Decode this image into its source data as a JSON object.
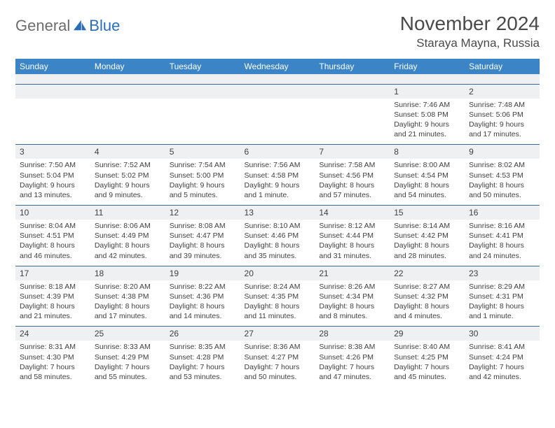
{
  "brand": {
    "part1": "General",
    "part2": "Blue"
  },
  "title": "November 2024",
  "location": "Staraya Mayna, Russia",
  "colors": {
    "header_bg": "#3b85c6",
    "header_text": "#ffffff",
    "row_band": "#eef0f2",
    "rule": "#3b6a9a",
    "text": "#404040",
    "brand_gray": "#6d6d6d",
    "brand_blue": "#2a6db8"
  },
  "weekdays": [
    "Sunday",
    "Monday",
    "Tuesday",
    "Wednesday",
    "Thursday",
    "Friday",
    "Saturday"
  ],
  "weeks": [
    [
      null,
      null,
      null,
      null,
      null,
      {
        "n": "1",
        "sr": "7:46 AM",
        "ss": "5:08 PM",
        "dl": "9 hours and 21 minutes."
      },
      {
        "n": "2",
        "sr": "7:48 AM",
        "ss": "5:06 PM",
        "dl": "9 hours and 17 minutes."
      }
    ],
    [
      {
        "n": "3",
        "sr": "7:50 AM",
        "ss": "5:04 PM",
        "dl": "9 hours and 13 minutes."
      },
      {
        "n": "4",
        "sr": "7:52 AM",
        "ss": "5:02 PM",
        "dl": "9 hours and 9 minutes."
      },
      {
        "n": "5",
        "sr": "7:54 AM",
        "ss": "5:00 PM",
        "dl": "9 hours and 5 minutes."
      },
      {
        "n": "6",
        "sr": "7:56 AM",
        "ss": "4:58 PM",
        "dl": "9 hours and 1 minute."
      },
      {
        "n": "7",
        "sr": "7:58 AM",
        "ss": "4:56 PM",
        "dl": "8 hours and 57 minutes."
      },
      {
        "n": "8",
        "sr": "8:00 AM",
        "ss": "4:54 PM",
        "dl": "8 hours and 54 minutes."
      },
      {
        "n": "9",
        "sr": "8:02 AM",
        "ss": "4:53 PM",
        "dl": "8 hours and 50 minutes."
      }
    ],
    [
      {
        "n": "10",
        "sr": "8:04 AM",
        "ss": "4:51 PM",
        "dl": "8 hours and 46 minutes."
      },
      {
        "n": "11",
        "sr": "8:06 AM",
        "ss": "4:49 PM",
        "dl": "8 hours and 42 minutes."
      },
      {
        "n": "12",
        "sr": "8:08 AM",
        "ss": "4:47 PM",
        "dl": "8 hours and 39 minutes."
      },
      {
        "n": "13",
        "sr": "8:10 AM",
        "ss": "4:46 PM",
        "dl": "8 hours and 35 minutes."
      },
      {
        "n": "14",
        "sr": "8:12 AM",
        "ss": "4:44 PM",
        "dl": "8 hours and 31 minutes."
      },
      {
        "n": "15",
        "sr": "8:14 AM",
        "ss": "4:42 PM",
        "dl": "8 hours and 28 minutes."
      },
      {
        "n": "16",
        "sr": "8:16 AM",
        "ss": "4:41 PM",
        "dl": "8 hours and 24 minutes."
      }
    ],
    [
      {
        "n": "17",
        "sr": "8:18 AM",
        "ss": "4:39 PM",
        "dl": "8 hours and 21 minutes."
      },
      {
        "n": "18",
        "sr": "8:20 AM",
        "ss": "4:38 PM",
        "dl": "8 hours and 17 minutes."
      },
      {
        "n": "19",
        "sr": "8:22 AM",
        "ss": "4:36 PM",
        "dl": "8 hours and 14 minutes."
      },
      {
        "n": "20",
        "sr": "8:24 AM",
        "ss": "4:35 PM",
        "dl": "8 hours and 11 minutes."
      },
      {
        "n": "21",
        "sr": "8:26 AM",
        "ss": "4:34 PM",
        "dl": "8 hours and 8 minutes."
      },
      {
        "n": "22",
        "sr": "8:27 AM",
        "ss": "4:32 PM",
        "dl": "8 hours and 4 minutes."
      },
      {
        "n": "23",
        "sr": "8:29 AM",
        "ss": "4:31 PM",
        "dl": "8 hours and 1 minute."
      }
    ],
    [
      {
        "n": "24",
        "sr": "8:31 AM",
        "ss": "4:30 PM",
        "dl": "7 hours and 58 minutes."
      },
      {
        "n": "25",
        "sr": "8:33 AM",
        "ss": "4:29 PM",
        "dl": "7 hours and 55 minutes."
      },
      {
        "n": "26",
        "sr": "8:35 AM",
        "ss": "4:28 PM",
        "dl": "7 hours and 53 minutes."
      },
      {
        "n": "27",
        "sr": "8:36 AM",
        "ss": "4:27 PM",
        "dl": "7 hours and 50 minutes."
      },
      {
        "n": "28",
        "sr": "8:38 AM",
        "ss": "4:26 PM",
        "dl": "7 hours and 47 minutes."
      },
      {
        "n": "29",
        "sr": "8:40 AM",
        "ss": "4:25 PM",
        "dl": "7 hours and 45 minutes."
      },
      {
        "n": "30",
        "sr": "8:41 AM",
        "ss": "4:24 PM",
        "dl": "7 hours and 42 minutes."
      }
    ]
  ],
  "labels": {
    "sunrise": "Sunrise:",
    "sunset": "Sunset:",
    "daylight": "Daylight:"
  }
}
